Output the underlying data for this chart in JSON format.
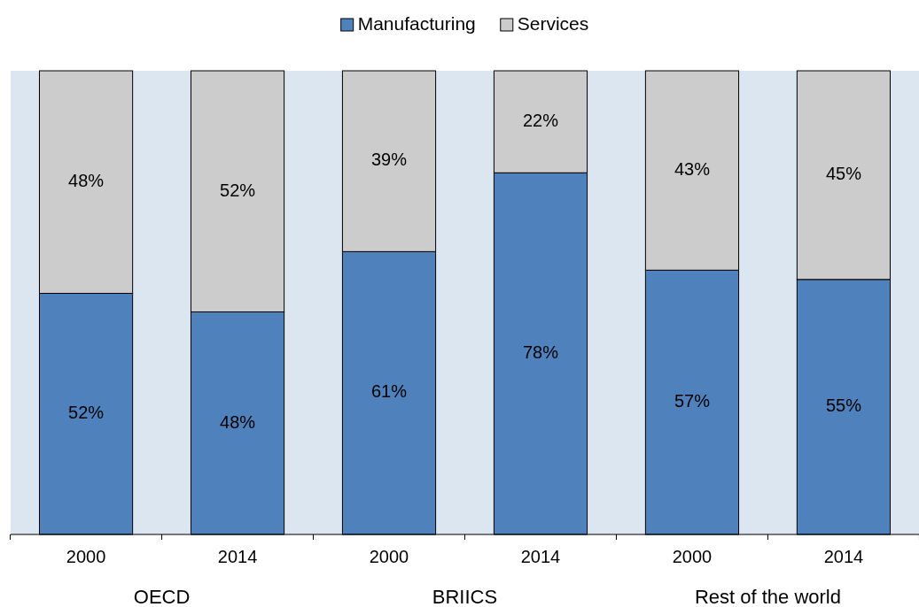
{
  "chart_data": {
    "type": "bar",
    "stacked": true,
    "categories": [
      "2000",
      "2014",
      "2000",
      "2014",
      "2000",
      "2014"
    ],
    "series": [
      {
        "name": "Manufacturing",
        "color": "#4f81bd",
        "values": [
          52,
          48,
          61,
          78,
          57,
          55
        ],
        "value_labels": [
          "52%",
          "48%",
          "61%",
          "78%",
          "57%",
          "55%"
        ]
      },
      {
        "name": "Services",
        "color": "#cccccc",
        "values": [
          48,
          52,
          39,
          22,
          43,
          45
        ],
        "value_labels": [
          "48%",
          "52%",
          "39%",
          "22%",
          "43%",
          "45%"
        ]
      }
    ],
    "ylim": [
      0,
      100
    ],
    "tick_labels": "x",
    "legend": "top",
    "annotations": [
      "OECD",
      "BRIICS",
      "Rest of the world"
    ]
  }
}
